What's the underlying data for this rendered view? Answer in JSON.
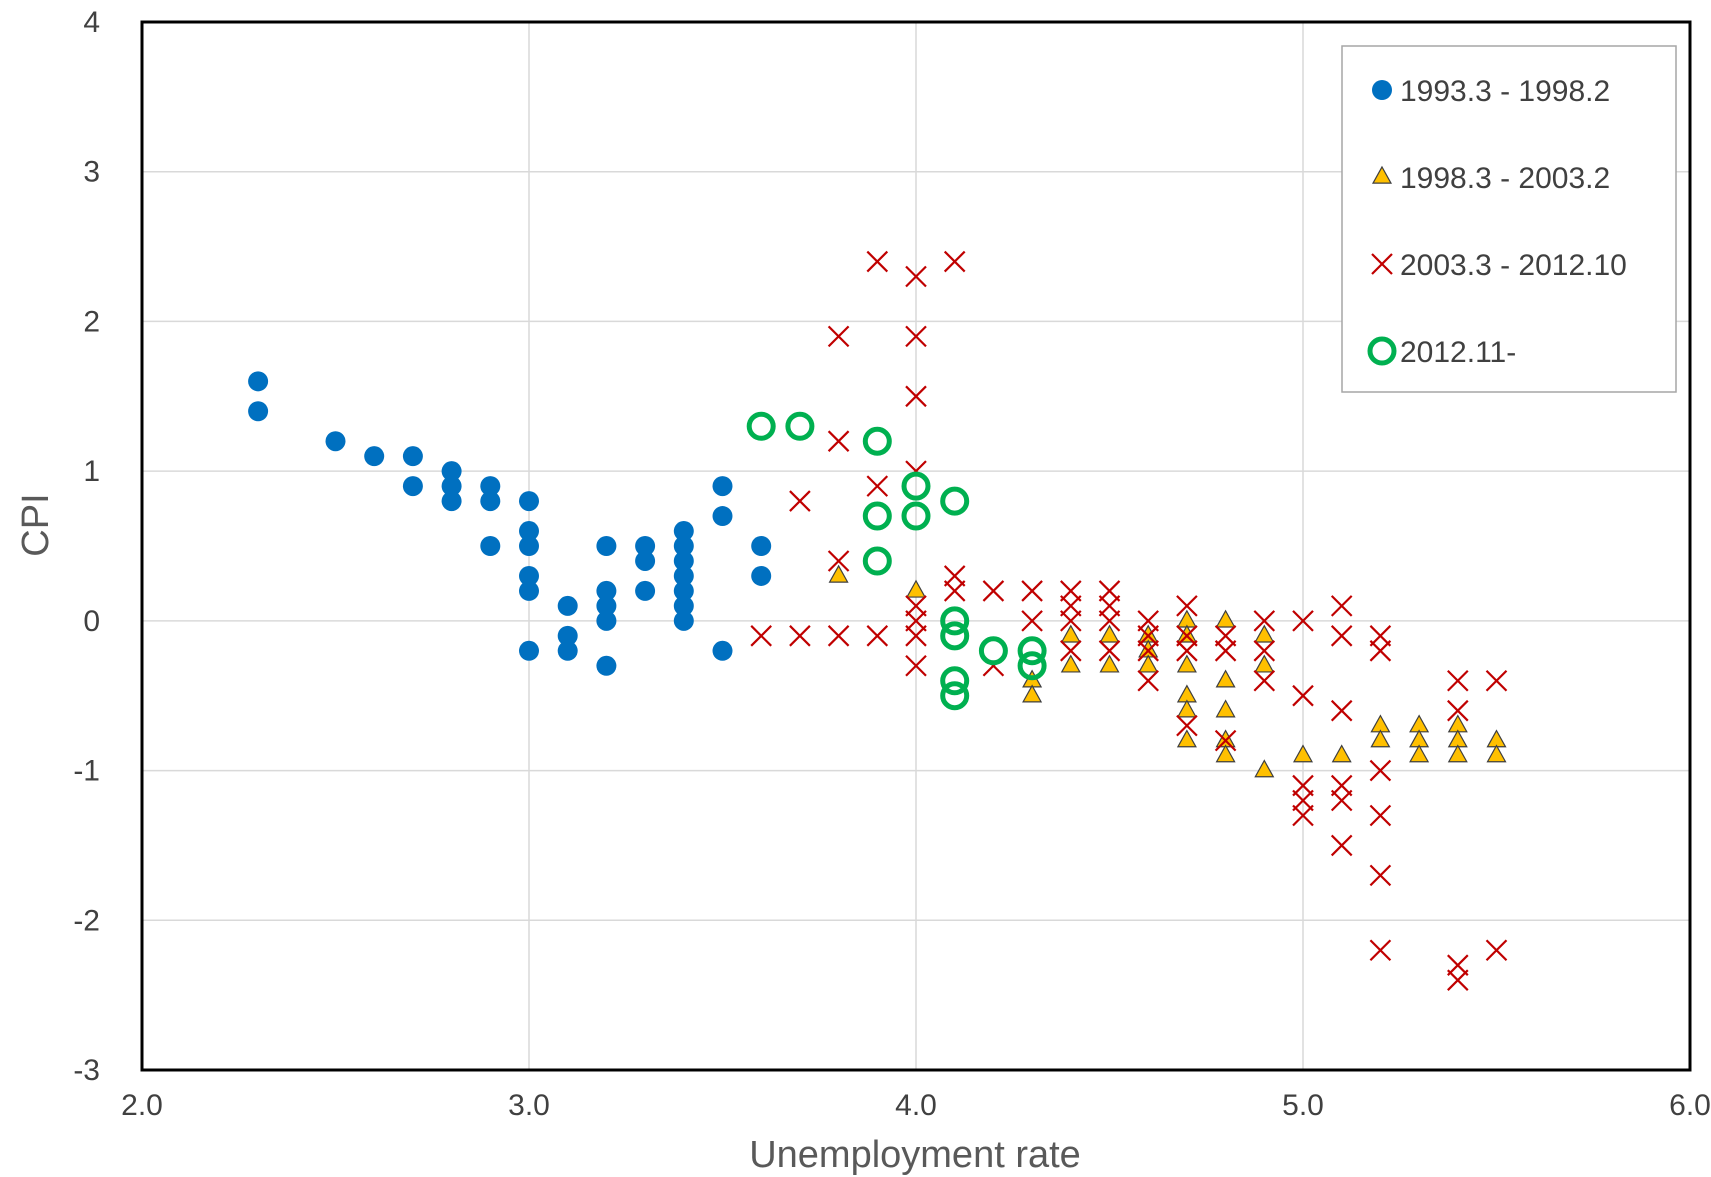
{
  "chart_data": {
    "type": "scatter",
    "title": "",
    "xlabel": "Unemployment rate",
    "ylabel": "CPI",
    "xlim": [
      2.0,
      6.0
    ],
    "ylim": [
      -3,
      4
    ],
    "x_ticks": [
      "2.0",
      "3.0",
      "4.0",
      "5.0",
      "6.0"
    ],
    "y_ticks": [
      "-3",
      "-2",
      "-1",
      "0",
      "1",
      "2",
      "3",
      "4"
    ],
    "grid": true,
    "legend_position": "top-right",
    "series": [
      {
        "name": "1993.3 - 1998.2",
        "marker": "filled-circle",
        "color": "#0070C0",
        "points": [
          [
            2.3,
            1.6
          ],
          [
            2.3,
            1.4
          ],
          [
            2.5,
            1.2
          ],
          [
            2.6,
            1.1
          ],
          [
            2.7,
            1.1
          ],
          [
            2.7,
            0.9
          ],
          [
            2.8,
            1.0
          ],
          [
            2.8,
            0.9
          ],
          [
            2.8,
            0.8
          ],
          [
            2.9,
            0.9
          ],
          [
            2.9,
            0.8
          ],
          [
            2.9,
            0.5
          ],
          [
            3.0,
            0.8
          ],
          [
            3.0,
            0.6
          ],
          [
            3.0,
            0.5
          ],
          [
            3.0,
            0.3
          ],
          [
            3.0,
            0.2
          ],
          [
            3.0,
            -0.2
          ],
          [
            3.1,
            0.1
          ],
          [
            3.1,
            -0.1
          ],
          [
            3.1,
            -0.2
          ],
          [
            3.2,
            0.5
          ],
          [
            3.2,
            0.2
          ],
          [
            3.2,
            0.1
          ],
          [
            3.2,
            0.0
          ],
          [
            3.2,
            -0.3
          ],
          [
            3.3,
            0.5
          ],
          [
            3.3,
            0.4
          ],
          [
            3.3,
            0.2
          ],
          [
            3.4,
            0.6
          ],
          [
            3.4,
            0.5
          ],
          [
            3.4,
            0.4
          ],
          [
            3.4,
            0.3
          ],
          [
            3.4,
            0.2
          ],
          [
            3.4,
            0.1
          ],
          [
            3.4,
            0.0
          ],
          [
            3.5,
            0.9
          ],
          [
            3.5,
            0.7
          ],
          [
            3.5,
            -0.2
          ],
          [
            3.6,
            0.5
          ],
          [
            3.6,
            0.3
          ]
        ]
      },
      {
        "name": "1998.3 - 2003.2",
        "marker": "triangle",
        "color": "#FFC000",
        "points": [
          [
            3.8,
            0.3
          ],
          [
            4.0,
            0.2
          ],
          [
            4.3,
            -0.4
          ],
          [
            4.3,
            -0.5
          ],
          [
            4.4,
            -0.1
          ],
          [
            4.4,
            -0.3
          ],
          [
            4.5,
            -0.1
          ],
          [
            4.5,
            -0.3
          ],
          [
            4.6,
            -0.1
          ],
          [
            4.6,
            -0.2
          ],
          [
            4.6,
            -0.3
          ],
          [
            4.7,
            0.0
          ],
          [
            4.7,
            -0.1
          ],
          [
            4.7,
            -0.3
          ],
          [
            4.7,
            -0.5
          ],
          [
            4.7,
            -0.6
          ],
          [
            4.7,
            -0.8
          ],
          [
            4.8,
            0.0
          ],
          [
            4.8,
            -0.4
          ],
          [
            4.8,
            -0.6
          ],
          [
            4.8,
            -0.8
          ],
          [
            4.8,
            -0.9
          ],
          [
            4.9,
            -0.1
          ],
          [
            4.9,
            -0.3
          ],
          [
            4.9,
            -1.0
          ],
          [
            5.0,
            -0.9
          ],
          [
            5.1,
            -0.9
          ],
          [
            5.2,
            -0.7
          ],
          [
            5.2,
            -0.8
          ],
          [
            5.3,
            -0.7
          ],
          [
            5.3,
            -0.8
          ],
          [
            5.3,
            -0.9
          ],
          [
            5.4,
            -0.7
          ],
          [
            5.4,
            -0.8
          ],
          [
            5.4,
            -0.9
          ],
          [
            5.5,
            -0.8
          ],
          [
            5.5,
            -0.9
          ]
        ]
      },
      {
        "name": "2003.3 - 2012.10",
        "marker": "x",
        "color": "#C00000",
        "points": [
          [
            3.6,
            -0.1
          ],
          [
            3.7,
            0.8
          ],
          [
            3.7,
            -0.1
          ],
          [
            3.8,
            1.9
          ],
          [
            3.8,
            1.2
          ],
          [
            3.8,
            0.4
          ],
          [
            3.8,
            -0.1
          ],
          [
            3.9,
            2.4
          ],
          [
            3.9,
            0.9
          ],
          [
            3.9,
            -0.1
          ],
          [
            4.0,
            2.3
          ],
          [
            4.0,
            1.9
          ],
          [
            4.0,
            1.5
          ],
          [
            4.0,
            1.0
          ],
          [
            4.0,
            0.1
          ],
          [
            4.0,
            0.0
          ],
          [
            4.0,
            -0.1
          ],
          [
            4.0,
            -0.3
          ],
          [
            4.1,
            2.4
          ],
          [
            4.1,
            0.3
          ],
          [
            4.1,
            0.2
          ],
          [
            4.2,
            0.2
          ],
          [
            4.2,
            -0.3
          ],
          [
            4.3,
            0.2
          ],
          [
            4.3,
            0.0
          ],
          [
            4.4,
            0.2
          ],
          [
            4.4,
            0.1
          ],
          [
            4.4,
            0.0
          ],
          [
            4.4,
            -0.2
          ],
          [
            4.5,
            0.2
          ],
          [
            4.5,
            0.1
          ],
          [
            4.5,
            0.0
          ],
          [
            4.5,
            -0.2
          ],
          [
            4.6,
            0.0
          ],
          [
            4.6,
            -0.1
          ],
          [
            4.6,
            -0.2
          ],
          [
            4.6,
            -0.4
          ],
          [
            4.7,
            0.1
          ],
          [
            4.7,
            -0.1
          ],
          [
            4.7,
            -0.2
          ],
          [
            4.7,
            -0.7
          ],
          [
            4.8,
            -0.1
          ],
          [
            4.8,
            -0.2
          ],
          [
            4.8,
            -0.8
          ],
          [
            4.9,
            0.0
          ],
          [
            4.9,
            -0.2
          ],
          [
            4.9,
            -0.4
          ],
          [
            5.0,
            0.0
          ],
          [
            5.0,
            -0.5
          ],
          [
            5.0,
            -1.1
          ],
          [
            5.0,
            -1.2
          ],
          [
            5.0,
            -1.3
          ],
          [
            5.1,
            0.1
          ],
          [
            5.1,
            -0.1
          ],
          [
            5.1,
            -0.6
          ],
          [
            5.1,
            -1.1
          ],
          [
            5.1,
            -1.2
          ],
          [
            5.1,
            -1.5
          ],
          [
            5.2,
            -0.1
          ],
          [
            5.2,
            -0.2
          ],
          [
            5.2,
            -1.0
          ],
          [
            5.2,
            -1.3
          ],
          [
            5.2,
            -1.7
          ],
          [
            5.2,
            -2.2
          ],
          [
            5.4,
            -0.4
          ],
          [
            5.4,
            -0.6
          ],
          [
            5.4,
            -2.3
          ],
          [
            5.4,
            -2.4
          ],
          [
            5.5,
            -0.4
          ],
          [
            5.5,
            -2.2
          ]
        ]
      },
      {
        "name": "2012.11-",
        "marker": "open-circle",
        "color": "#00B050",
        "points": [
          [
            3.6,
            1.3
          ],
          [
            3.7,
            1.3
          ],
          [
            3.9,
            1.2
          ],
          [
            3.9,
            0.7
          ],
          [
            3.9,
            0.4
          ],
          [
            4.0,
            0.9
          ],
          [
            4.0,
            0.7
          ],
          [
            4.1,
            0.8
          ],
          [
            4.1,
            0.0
          ],
          [
            4.1,
            -0.1
          ],
          [
            4.1,
            -0.4
          ],
          [
            4.1,
            -0.5
          ],
          [
            4.2,
            -0.2
          ],
          [
            4.3,
            -0.2
          ],
          [
            4.3,
            -0.3
          ]
        ]
      }
    ]
  }
}
